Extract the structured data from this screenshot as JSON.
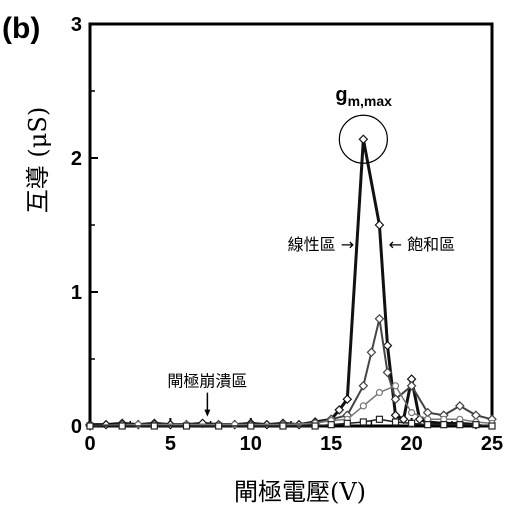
{
  "panel_label": "(b)",
  "chart_data": {
    "type": "line",
    "xlabel": "閘極電壓(V)",
    "ylabel": "互導 (μS)",
    "xlim": [
      0,
      25
    ],
    "ylim": [
      0,
      3
    ],
    "x_ticks": [
      "0",
      "5",
      "10",
      "15",
      "20",
      "25"
    ],
    "y_ticks": [
      "0",
      "1",
      "2",
      "3"
    ],
    "grid": false,
    "legend": "none",
    "series": [
      {
        "color": "#111111",
        "width": 3,
        "marker": "diamond",
        "x": [
          0,
          1,
          2,
          3,
          4,
          5,
          6,
          7,
          8,
          9,
          10,
          11,
          12,
          13,
          14,
          15,
          15.5,
          16,
          17,
          18,
          18.5,
          19,
          19.5,
          20,
          20.5,
          21,
          22,
          23,
          24
        ],
        "y": [
          0.01,
          0.01,
          0.02,
          0.01,
          0.02,
          0.01,
          0.01,
          0.02,
          0.01,
          0.01,
          0.02,
          0.01,
          0.02,
          0.01,
          0.03,
          0.05,
          0.12,
          0.2,
          2.14,
          1.5,
          0.6,
          0.08,
          0.05,
          0.35,
          0.05,
          0.03,
          0.02,
          0.02,
          0.01
        ]
      },
      {
        "color": "#444444",
        "width": 2,
        "marker": "diamond",
        "x": [
          0,
          2,
          4,
          6,
          8,
          10,
          12,
          14,
          15,
          16,
          17,
          17.5,
          18,
          18.5,
          19,
          20,
          21,
          22,
          23,
          24,
          25
        ],
        "y": [
          0,
          0.01,
          0.01,
          0.01,
          0.01,
          0.01,
          0.01,
          0.02,
          0.05,
          0.08,
          0.3,
          0.55,
          0.8,
          0.4,
          0.2,
          0.3,
          0.1,
          0.08,
          0.15,
          0.08,
          0.05
        ]
      },
      {
        "color": "#777777",
        "width": 1.5,
        "marker": "circle",
        "x": [
          0,
          3,
          6,
          9,
          12,
          14,
          15,
          16,
          17,
          18,
          19,
          20,
          21,
          22,
          23,
          24,
          25
        ],
        "y": [
          0,
          0.01,
          0.01,
          0.01,
          0.01,
          0.02,
          0.04,
          0.05,
          0.15,
          0.25,
          0.3,
          0.1,
          0.05,
          0.05,
          0.05,
          0.03,
          0.02
        ]
      },
      {
        "color": "#222222",
        "width": 1.5,
        "marker": "square",
        "x": [
          0,
          2,
          4,
          6,
          8,
          10,
          12,
          14,
          15,
          16,
          17,
          18,
          19,
          20,
          21,
          22,
          23,
          24,
          25
        ],
        "y": [
          0,
          0,
          0,
          0,
          0,
          0,
          0,
          0,
          0.01,
          0.02,
          0.03,
          0.05,
          0.03,
          0.02,
          0.01,
          0.01,
          0.01,
          0.01,
          0
        ]
      }
    ],
    "annotations": {
      "gm_max": {
        "label_main": "g",
        "label_sub": "m,max",
        "x": 17,
        "y": 2.14
      },
      "linear_region": {
        "label": "線性區 →",
        "x": 16.8,
        "y": 1.36
      },
      "saturation_region": {
        "label": "← 飽和區",
        "x": 18.2,
        "y": 1.36
      },
      "gate_breakdown": {
        "label": "閘極崩潰區",
        "x": 7.3,
        "y": 0.04
      }
    }
  }
}
